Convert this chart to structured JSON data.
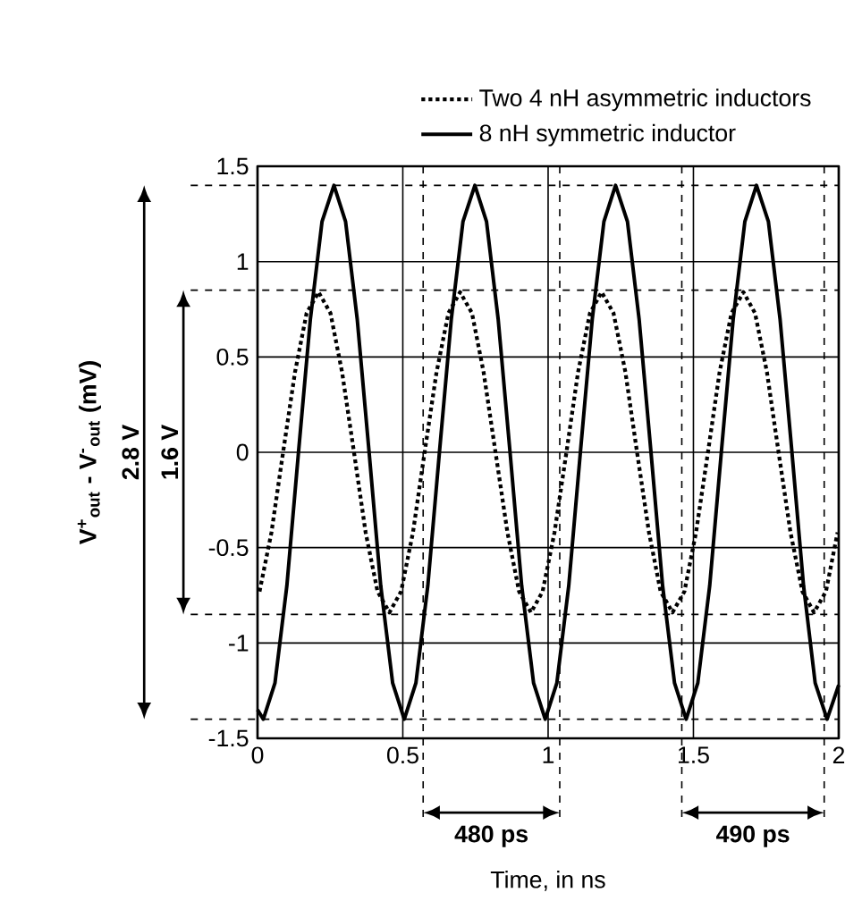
{
  "chart_data": {
    "type": "line",
    "xlabel": "Time, in ns",
    "ylabel": "V$^{+}$$_{out}$ - V$^{-}$$_{out}$ (mV)",
    "xlim": [
      0,
      2
    ],
    "ylim": [
      -1.5,
      1.5
    ],
    "xticks": [
      0,
      0.5,
      1,
      1.5,
      2
    ],
    "yticks": [
      -1.5,
      -1,
      -0.5,
      0,
      0.5,
      1,
      1.5
    ],
    "grid": true,
    "legend": "top",
    "series": [
      {
        "name": "Two 4 nH asymmetric inductors",
        "color": "#000000",
        "line_style": "dotted",
        "x": [
          0.007,
          0.048,
          0.088,
          0.129,
          0.169,
          0.21,
          0.251,
          0.291,
          0.332,
          0.372,
          0.413,
          0.454,
          0.494,
          0.535,
          0.575,
          0.616,
          0.657,
          0.697,
          0.738,
          0.778,
          0.819,
          0.86,
          0.9,
          0.941,
          0.981,
          1.022,
          1.063,
          1.103,
          1.144,
          1.184,
          1.225,
          1.266,
          1.306,
          1.347,
          1.387,
          1.428,
          1.469,
          1.509,
          1.55,
          1.59,
          1.631,
          1.672,
          1.712,
          1.753,
          1.793,
          1.834,
          1.875,
          1.915,
          1.956,
          1.996
        ],
        "values": [
          -0.73,
          -0.42,
          0,
          0.42,
          0.73,
          0.84,
          0.73,
          0.42,
          0,
          -0.42,
          -0.73,
          -0.84,
          -0.73,
          -0.42,
          0,
          0.42,
          0.73,
          0.84,
          0.73,
          0.42,
          0,
          -0.42,
          -0.73,
          -0.84,
          -0.73,
          -0.42,
          0,
          0.42,
          0.73,
          0.84,
          0.73,
          0.42,
          0,
          -0.42,
          -0.73,
          -0.84,
          -0.73,
          -0.42,
          0,
          0.42,
          0.73,
          0.84,
          0.73,
          0.42,
          0,
          -0.42,
          -0.73,
          -0.84,
          -0.73,
          -0.42
        ]
      },
      {
        "name": "8 nH symmetric inductor",
        "color": "#000000",
        "line_style": "solid",
        "x": [
          0,
          0.02,
          0.06,
          0.101,
          0.141,
          0.182,
          0.222,
          0.263,
          0.303,
          0.343,
          0.384,
          0.424,
          0.465,
          0.505,
          0.545,
          0.586,
          0.626,
          0.667,
          0.707,
          0.748,
          0.788,
          0.828,
          0.869,
          0.909,
          0.95,
          0.99,
          1.03,
          1.071,
          1.111,
          1.152,
          1.192,
          1.232,
          1.273,
          1.313,
          1.354,
          1.394,
          1.435,
          1.475,
          1.515,
          1.556,
          1.596,
          1.637,
          1.677,
          1.717,
          1.758,
          1.798,
          1.839,
          1.879,
          1.919,
          1.96,
          2
        ],
        "values": [
          -1.35,
          -1.4,
          -1.21,
          -0.7,
          0,
          0.7,
          1.21,
          1.4,
          1.21,
          0.7,
          0,
          -0.7,
          -1.21,
          -1.4,
          -1.21,
          -0.7,
          0,
          0.7,
          1.21,
          1.4,
          1.21,
          0.7,
          0,
          -0.7,
          -1.21,
          -1.4,
          -1.21,
          -0.7,
          0,
          0.7,
          1.21,
          1.4,
          1.21,
          0.7,
          0,
          -0.7,
          -1.21,
          -1.4,
          -1.21,
          -0.7,
          0,
          0.7,
          1.21,
          1.4,
          1.21,
          0.7,
          0,
          -0.7,
          -1.21,
          -1.4,
          -1.22
        ]
      }
    ],
    "ref_lines": [
      {
        "axis": "y",
        "value": 1.4,
        "line_style": "dashed"
      },
      {
        "axis": "y",
        "value": -1.4,
        "line_style": "dashed"
      },
      {
        "axis": "y",
        "value": 0.85,
        "line_style": "dashed"
      },
      {
        "axis": "y",
        "value": -0.85,
        "line_style": "dashed"
      },
      {
        "axis": "x",
        "value": 0.57,
        "line_style": "dashed"
      },
      {
        "axis": "x",
        "value": 1.04,
        "line_style": "dashed"
      },
      {
        "axis": "x",
        "value": 1.46,
        "line_style": "dashed"
      },
      {
        "axis": "x",
        "value": 1.95,
        "line_style": "dashed"
      }
    ],
    "annotations": [
      "2.8 V",
      "1.6 V",
      "480 ps",
      "490 ps"
    ]
  }
}
